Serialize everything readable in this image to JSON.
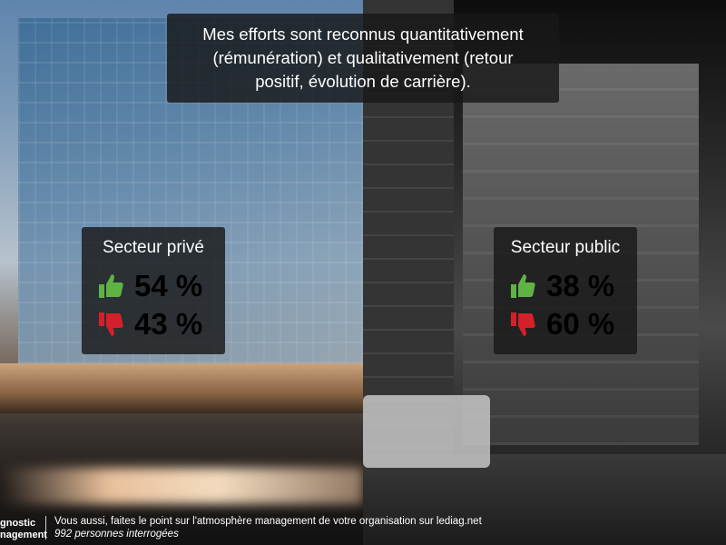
{
  "title": "Mes efforts sont reconnus quantitativement (rémunération) et qualitativement (retour positif, évolution de carrière).",
  "title_lines": [
    "Mes efforts sont reconnus quantitativement",
    "(rémunération) et qualitativement (retour",
    "positif, évolution de carrière)."
  ],
  "sectors": [
    {
      "name": "Secteur privé",
      "positive": "54 %",
      "negative": "43 %"
    },
    {
      "name": "Secteur public",
      "positive": "38 %",
      "negative": "60 %"
    }
  ],
  "colors": {
    "positive": "#5fb244",
    "negative": "#d4202a"
  },
  "icons": {
    "positive": "thumbs-up-icon",
    "negative": "thumbs-down-icon"
  },
  "footer": {
    "brand_line1": "gnostic",
    "brand_line2": "nagement",
    "text": "Vous aussi, faites le point sur l'atmosphère management de votre organisation sur lediag.net",
    "respondents": "992 personnes interrogées"
  }
}
